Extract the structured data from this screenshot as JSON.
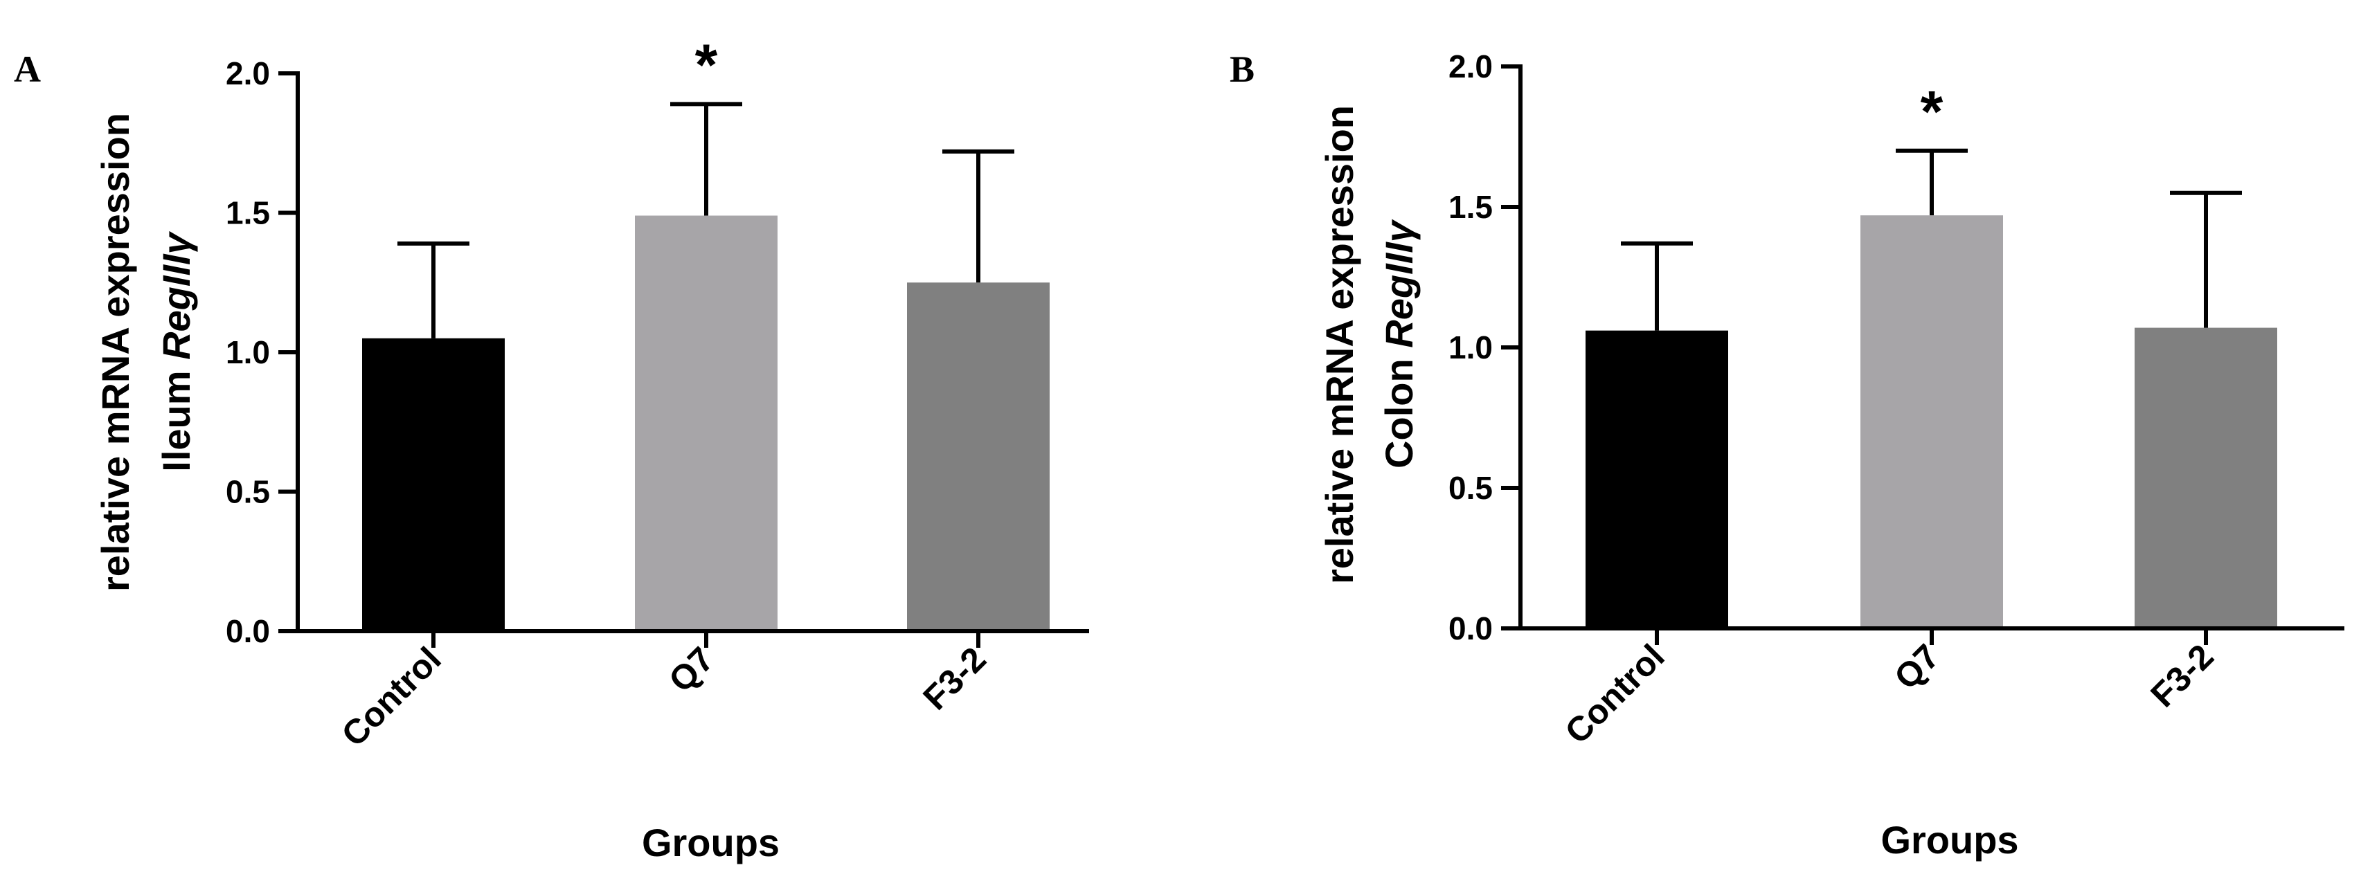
{
  "chart_data": [
    {
      "type": "bar",
      "panel_label": "A",
      "categories": [
        "Control",
        "Q7",
        "F3-2"
      ],
      "values": [
        1.05,
        1.49,
        1.25
      ],
      "errors": [
        0.34,
        0.4,
        0.47
      ],
      "colors": [
        "#000000",
        "#a7a5a8",
        "#808080"
      ],
      "significance": [
        "",
        "*",
        ""
      ],
      "ylabel_lines": [
        {
          "parts": [
            "Ileum ",
            "RegIIIγ"
          ],
          "italic": [
            false,
            true
          ]
        },
        {
          "parts": [
            "relative mRNA expression"
          ],
          "italic": [
            false
          ]
        }
      ],
      "xlabel": "Groups",
      "ylim": [
        0,
        2
      ],
      "yticks": [
        0,
        0.5,
        1,
        1.5,
        2
      ],
      "ytick_labels": [
        "0.0",
        "0.5",
        "1.0",
        "1.5",
        "2.0"
      ]
    },
    {
      "type": "bar",
      "panel_label": "B",
      "categories": [
        "Control",
        "Q7",
        "F3-2"
      ],
      "values": [
        1.06,
        1.47,
        1.07
      ],
      "errors": [
        0.31,
        0.23,
        0.48
      ],
      "colors": [
        "#000000",
        "#a7a5a8",
        "#808080"
      ],
      "significance": [
        "",
        "*",
        ""
      ],
      "ylabel_lines": [
        {
          "parts": [
            "Colon ",
            "RegIIIγ"
          ],
          "italic": [
            false,
            true
          ]
        },
        {
          "parts": [
            "relative mRNA expression"
          ],
          "italic": [
            false
          ]
        }
      ],
      "xlabel": "Groups",
      "ylim": [
        0,
        2
      ],
      "yticks": [
        0,
        0.5,
        1,
        1.5,
        2
      ],
      "ytick_labels": [
        "0.0",
        "0.5",
        "1.0",
        "1.5",
        "2.0"
      ]
    }
  ]
}
